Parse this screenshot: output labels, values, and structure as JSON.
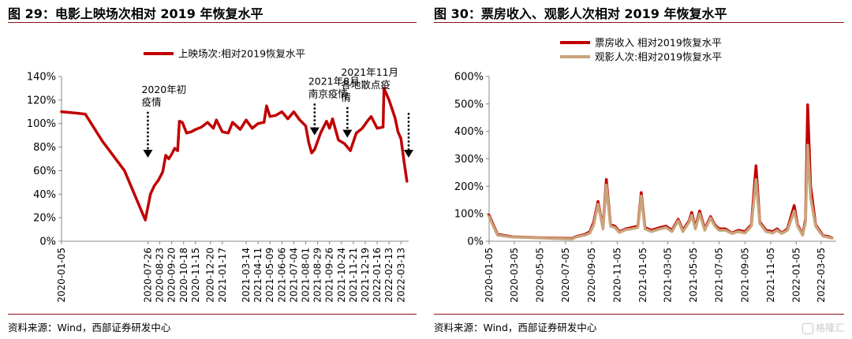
{
  "left": {
    "title": "图 29：电影上映场次相对 2019 年恢复水平",
    "source": "资料来源：Wind，西部证券研发中心",
    "chart_data": {
      "type": "line",
      "series": [
        {
          "name": "上映场次:相对2019恢复水平",
          "color": "#c00000",
          "points": [
            [
              "2020-01-05",
              110
            ],
            [
              "2020-02-05",
              109
            ],
            [
              "2020-03-01",
              108
            ],
            [
              "2020-04-10",
              85
            ],
            [
              "2020-06-01",
              60
            ],
            [
              "2020-07-20",
              18
            ],
            [
              "2020-08-01",
              40
            ],
            [
              "2020-08-10",
              47
            ],
            [
              "2020-08-20",
              52
            ],
            [
              "2020-08-30",
              59
            ],
            [
              "2020-09-06",
              73
            ],
            [
              "2020-09-13",
              70
            ],
            [
              "2020-09-20",
              74
            ],
            [
              "2020-09-27",
              79
            ],
            [
              "2020-10-04",
              77
            ],
            [
              "2020-10-08",
              102
            ],
            [
              "2020-10-15",
              101
            ],
            [
              "2020-10-25",
              92
            ],
            [
              "2020-11-05",
              93
            ],
            [
              "2020-11-15",
              95
            ],
            [
              "2020-11-29",
              97
            ],
            [
              "2020-12-13",
              101
            ],
            [
              "2020-12-27",
              96
            ],
            [
              "2021-01-03",
              103
            ],
            [
              "2021-01-17",
              93
            ],
            [
              "2021-01-31",
              92
            ],
            [
              "2021-02-10",
              101
            ],
            [
              "2021-02-28",
              95
            ],
            [
              "2021-03-14",
              103
            ],
            [
              "2021-03-28",
              96
            ],
            [
              "2021-04-11",
              100
            ],
            [
              "2021-04-25",
              101
            ],
            [
              "2021-05-01",
              115
            ],
            [
              "2021-05-09",
              106
            ],
            [
              "2021-05-23",
              107
            ],
            [
              "2021-06-06",
              110
            ],
            [
              "2021-06-20",
              104
            ],
            [
              "2021-07-04",
              110
            ],
            [
              "2021-07-18",
              103
            ],
            [
              "2021-08-01",
              98
            ],
            [
              "2021-08-08",
              84
            ],
            [
              "2021-08-15",
              75
            ],
            [
              "2021-08-22",
              78
            ],
            [
              "2021-09-05",
              92
            ],
            [
              "2021-09-19",
              102
            ],
            [
              "2021-09-26",
              96
            ],
            [
              "2021-10-03",
              104
            ],
            [
              "2021-10-17",
              86
            ],
            [
              "2021-10-31",
              83
            ],
            [
              "2021-11-14",
              77
            ],
            [
              "2021-11-28",
              92
            ],
            [
              "2021-12-12",
              96
            ],
            [
              "2021-12-26",
              103
            ],
            [
              "2022-01-02",
              106
            ],
            [
              "2022-01-16",
              96
            ],
            [
              "2022-01-30",
              97
            ],
            [
              "2022-02-01",
              130
            ],
            [
              "2022-02-13",
              120
            ],
            [
              "2022-02-27",
              105
            ],
            [
              "2022-03-06",
              93
            ],
            [
              "2022-03-13",
              87
            ],
            [
              "2022-03-20",
              68
            ],
            [
              "2022-03-27",
              51
            ]
          ]
        }
      ],
      "yticks": [
        0,
        20,
        40,
        60,
        80,
        100,
        120,
        140
      ],
      "ylim": [
        0,
        140
      ],
      "xlim": [
        "2020-01-05",
        "2022-03-31"
      ],
      "xticks": [
        "2020-01-05",
        "2020-07-26",
        "2020-08-23",
        "2020-09-20",
        "2020-10-18",
        "2020-11-15",
        "2020-12-20",
        "2021-01-17",
        "2021-03-14",
        "2021-04-11",
        "2021-05-09",
        "2021-06-06",
        "2021-07-04",
        "2021-08-01",
        "2021-08-29",
        "2021-09-26",
        "2021-10-24",
        "2021-11-21",
        "2021-12-19",
        "2022-01-16",
        "2022-02-13",
        "2022-03-13"
      ],
      "yunit": "%",
      "grid": false,
      "legend_position": "top",
      "annotations": [
        {
          "lines": [
            "2020年初",
            "疫情"
          ],
          "x": "2020-07-26",
          "arrow_from_y": 110,
          "arrow_to_y": 71
        },
        {
          "lines": [
            "2021年8月",
            "南京疫情"
          ],
          "x": "2021-08-22",
          "arrow_from_y": 117,
          "arrow_to_y": 90
        },
        {
          "lines": [
            "2021年11月",
            "各地散点疫",
            "情"
          ],
          "x": "2021-11-07",
          "arrow_from_y": 114,
          "arrow_to_y": 88
        },
        {
          "lines": [],
          "x": "2022-03-31",
          "arrow_from_y": 109,
          "arrow_to_y": 71
        }
      ]
    }
  },
  "right": {
    "title": "图 30：票房收入、观影人次相对 2019 年恢复水平",
    "source": "资料来源：Wind，西部证券研发中心",
    "watermark": "格隆汇",
    "chart_data": {
      "type": "line",
      "series": [
        {
          "name": "票房收入 相对2019恢复水平",
          "color": "#c00000",
          "points": [
            [
              "2020-01-05",
              95
            ],
            [
              "2020-01-15",
              60
            ],
            [
              "2020-01-25",
              25
            ],
            [
              "2020-03-01",
              16
            ],
            [
              "2020-05-01",
              13
            ],
            [
              "2020-07-20",
              10
            ],
            [
              "2020-08-01",
              18
            ],
            [
              "2020-08-20",
              25
            ],
            [
              "2020-09-01",
              35
            ],
            [
              "2020-09-10",
              70
            ],
            [
              "2020-09-20",
              145
            ],
            [
              "2020-09-27",
              90
            ],
            [
              "2020-10-02",
              50
            ],
            [
              "2020-10-10",
              225
            ],
            [
              "2020-10-20",
              60
            ],
            [
              "2020-10-30",
              55
            ],
            [
              "2020-11-10",
              35
            ],
            [
              "2020-11-25",
              45
            ],
            [
              "2020-12-10",
              50
            ],
            [
              "2020-12-24",
              55
            ],
            [
              "2021-01-01",
              177
            ],
            [
              "2021-01-10",
              50
            ],
            [
              "2021-01-25",
              40
            ],
            [
              "2021-02-15",
              50
            ],
            [
              "2021-03-01",
              55
            ],
            [
              "2021-03-15",
              40
            ],
            [
              "2021-03-30",
              80
            ],
            [
              "2021-04-10",
              40
            ],
            [
              "2021-04-25",
              75
            ],
            [
              "2021-05-01",
              105
            ],
            [
              "2021-05-10",
              50
            ],
            [
              "2021-05-20",
              110
            ],
            [
              "2021-06-01",
              45
            ],
            [
              "2021-06-15",
              90
            ],
            [
              "2021-06-25",
              60
            ],
            [
              "2021-07-05",
              45
            ],
            [
              "2021-07-20",
              45
            ],
            [
              "2021-08-05",
              30
            ],
            [
              "2021-08-20",
              40
            ],
            [
              "2021-09-05",
              35
            ],
            [
              "2021-09-20",
              60
            ],
            [
              "2021-10-01",
              275
            ],
            [
              "2021-10-10",
              70
            ],
            [
              "2021-10-25",
              40
            ],
            [
              "2021-11-10",
              35
            ],
            [
              "2021-11-20",
              45
            ],
            [
              "2021-12-01",
              30
            ],
            [
              "2021-12-15",
              45
            ],
            [
              "2021-12-31",
              130
            ],
            [
              "2022-01-08",
              60
            ],
            [
              "2022-01-20",
              25
            ],
            [
              "2022-01-27",
              80
            ],
            [
              "2022-02-01",
              497
            ],
            [
              "2022-02-08",
              200
            ],
            [
              "2022-02-20",
              60
            ],
            [
              "2022-03-01",
              40
            ],
            [
              "2022-03-10",
              20
            ],
            [
              "2022-03-20",
              18
            ],
            [
              "2022-03-31",
              12
            ]
          ]
        },
        {
          "name": "观影人次:相对2019恢复水平",
          "color": "#c9a37a",
          "points": [
            [
              "2020-01-05",
              90
            ],
            [
              "2020-01-15",
              55
            ],
            [
              "2020-01-25",
              22
            ],
            [
              "2020-03-01",
              15
            ],
            [
              "2020-05-01",
              12
            ],
            [
              "2020-07-20",
              8
            ],
            [
              "2020-08-01",
              16
            ],
            [
              "2020-08-20",
              22
            ],
            [
              "2020-09-01",
              30
            ],
            [
              "2020-09-10",
              60
            ],
            [
              "2020-09-20",
              135
            ],
            [
              "2020-09-27",
              85
            ],
            [
              "2020-10-02",
              45
            ],
            [
              "2020-10-10",
              205
            ],
            [
              "2020-10-20",
              55
            ],
            [
              "2020-10-30",
              50
            ],
            [
              "2020-11-10",
              32
            ],
            [
              "2020-11-25",
              42
            ],
            [
              "2020-12-10",
              45
            ],
            [
              "2020-12-24",
              50
            ],
            [
              "2021-01-01",
              165
            ],
            [
              "2021-01-10",
              45
            ],
            [
              "2021-01-25",
              35
            ],
            [
              "2021-02-15",
              45
            ],
            [
              "2021-03-01",
              50
            ],
            [
              "2021-03-15",
              35
            ],
            [
              "2021-03-30",
              75
            ],
            [
              "2021-04-10",
              35
            ],
            [
              "2021-04-25",
              70
            ],
            [
              "2021-05-01",
              95
            ],
            [
              "2021-05-10",
              45
            ],
            [
              "2021-05-20",
              100
            ],
            [
              "2021-06-01",
              40
            ],
            [
              "2021-06-15",
              85
            ],
            [
              "2021-06-25",
              55
            ],
            [
              "2021-07-05",
              40
            ],
            [
              "2021-07-20",
              40
            ],
            [
              "2021-08-05",
              28
            ],
            [
              "2021-08-20",
              35
            ],
            [
              "2021-09-05",
              30
            ],
            [
              "2021-09-20",
              55
            ],
            [
              "2021-10-01",
              225
            ],
            [
              "2021-10-10",
              65
            ],
            [
              "2021-10-25",
              35
            ],
            [
              "2021-11-10",
              30
            ],
            [
              "2021-11-20",
              40
            ],
            [
              "2021-12-01",
              28
            ],
            [
              "2021-12-15",
              40
            ],
            [
              "2021-12-31",
              110
            ],
            [
              "2022-01-08",
              55
            ],
            [
              "2022-01-20",
              22
            ],
            [
              "2022-01-27",
              70
            ],
            [
              "2022-02-01",
              350
            ],
            [
              "2022-02-08",
              160
            ],
            [
              "2022-02-20",
              55
            ],
            [
              "2022-03-01",
              35
            ],
            [
              "2022-03-10",
              18
            ],
            [
              "2022-03-20",
              15
            ],
            [
              "2022-03-31",
              11
            ]
          ]
        }
      ],
      "yticks": [
        0,
        100,
        200,
        300,
        400,
        500,
        600
      ],
      "ylim": [
        0,
        600
      ],
      "xlim": [
        "2020-01-05",
        "2022-04-10"
      ],
      "xticks": [
        "2020-01-05",
        "2020-03-05",
        "2020-05-05",
        "2020-07-05",
        "2020-09-05",
        "2020-11-05",
        "2021-01-05",
        "2021-03-05",
        "2021-05-05",
        "2021-07-05",
        "2021-09-05",
        "2021-11-05",
        "2022-01-05",
        "2022-03-05"
      ],
      "yunit": "%",
      "grid": false,
      "legend_position": "top"
    }
  }
}
